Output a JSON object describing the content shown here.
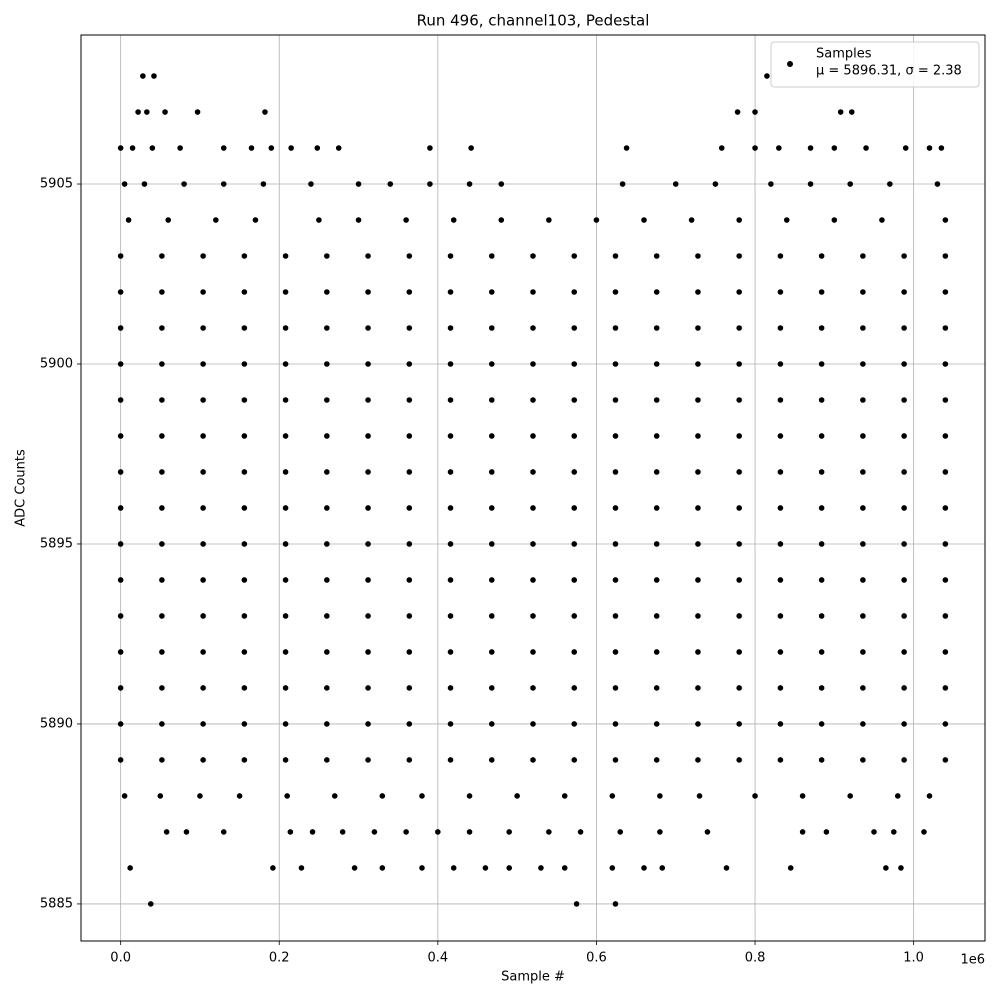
{
  "chart_data": {
    "type": "scatter",
    "title": "Run 496, channel103, Pedestal",
    "x_label": "Sample #",
    "y_label": "ADC Counts",
    "x_offset_label": "1e6",
    "xlim": [
      -50000,
      1090000
    ],
    "ylim": [
      5883.97,
      5909.14
    ],
    "xticks": [
      {
        "value": 0,
        "label": "0.0"
      },
      {
        "value": 200000,
        "label": "0.2"
      },
      {
        "value": 400000,
        "label": "0.4"
      },
      {
        "value": 600000,
        "label": "0.6"
      },
      {
        "value": 800000,
        "label": "0.8"
      },
      {
        "value": 1000000,
        "label": "1.0"
      }
    ],
    "yticks": [
      5885,
      5890,
      5895,
      5900,
      5905
    ],
    "grid": true,
    "legend_position": "upper right",
    "legend_note": "μ = 5896.31, σ = 2.38",
    "series": [
      {
        "name": "Samples",
        "color": "#000000",
        "x": [
          0,
          52000,
          104000,
          156000,
          208000,
          260000,
          312000,
          364000,
          416000,
          468000,
          520000,
          572000,
          624000,
          676000,
          728000,
          780000,
          832000,
          884000,
          936000,
          988000,
          1040000,
          0,
          52000,
          104000,
          156000,
          208000,
          260000,
          312000,
          364000,
          416000,
          468000,
          520000,
          572000,
          624000,
          676000,
          728000,
          780000,
          832000,
          884000,
          936000,
          988000,
          1040000,
          0,
          52000,
          104000,
          156000,
          208000,
          260000,
          312000,
          364000,
          416000,
          468000,
          520000,
          572000,
          624000,
          676000,
          728000,
          780000,
          832000,
          884000,
          936000,
          988000,
          1040000,
          0,
          52000,
          104000,
          156000,
          208000,
          260000,
          312000,
          364000,
          416000,
          468000,
          520000,
          572000,
          624000,
          676000,
          728000,
          780000,
          832000,
          884000,
          936000,
          988000,
          1040000,
          0,
          52000,
          104000,
          156000,
          208000,
          260000,
          312000,
          364000,
          416000,
          468000,
          520000,
          572000,
          624000,
          676000,
          728000,
          780000,
          832000,
          884000,
          936000,
          988000,
          1040000,
          0,
          52000,
          104000,
          156000,
          208000,
          260000,
          312000,
          364000,
          416000,
          468000,
          520000,
          572000,
          624000,
          676000,
          728000,
          780000,
          832000,
          884000,
          936000,
          988000,
          1040000,
          0,
          52000,
          104000,
          156000,
          208000,
          260000,
          312000,
          364000,
          416000,
          468000,
          520000,
          572000,
          624000,
          676000,
          728000,
          780000,
          832000,
          884000,
          936000,
          988000,
          1040000,
          0,
          52000,
          104000,
          156000,
          208000,
          260000,
          312000,
          364000,
          416000,
          468000,
          520000,
          572000,
          624000,
          676000,
          728000,
          780000,
          832000,
          884000,
          936000,
          988000,
          1040000,
          0,
          52000,
          104000,
          156000,
          208000,
          260000,
          312000,
          364000,
          416000,
          468000,
          520000,
          572000,
          624000,
          676000,
          728000,
          780000,
          832000,
          884000,
          936000,
          988000,
          1040000,
          0,
          52000,
          104000,
          156000,
          208000,
          260000,
          312000,
          364000,
          416000,
          468000,
          520000,
          572000,
          624000,
          676000,
          728000,
          780000,
          832000,
          884000,
          936000,
          988000,
          1040000,
          0,
          52000,
          104000,
          156000,
          208000,
          260000,
          312000,
          364000,
          416000,
          468000,
          520000,
          572000,
          624000,
          676000,
          728000,
          780000,
          832000,
          884000,
          936000,
          988000,
          1040000,
          0,
          52000,
          104000,
          156000,
          208000,
          260000,
          312000,
          364000,
          416000,
          468000,
          520000,
          572000,
          624000,
          676000,
          728000,
          780000,
          832000,
          884000,
          936000,
          988000,
          1040000,
          0,
          52000,
          104000,
          156000,
          208000,
          260000,
          312000,
          364000,
          416000,
          468000,
          520000,
          572000,
          624000,
          676000,
          728000,
          780000,
          832000,
          884000,
          936000,
          988000,
          1040000,
          0,
          52000,
          104000,
          156000,
          208000,
          260000,
          312000,
          364000,
          416000,
          468000,
          520000,
          572000,
          624000,
          676000,
          728000,
          780000,
          832000,
          884000,
          936000,
          988000,
          1040000,
          0,
          52000,
          104000,
          156000,
          208000,
          260000,
          312000,
          364000,
          416000,
          468000,
          520000,
          572000,
          624000,
          676000,
          728000,
          780000,
          832000,
          884000,
          936000,
          988000,
          1040000,
          10000,
          60000,
          120000,
          170000,
          250000,
          300000,
          360000,
          420000,
          480000,
          540000,
          600000,
          660000,
          720000,
          780000,
          840000,
          900000,
          960000,
          1040000,
          5000,
          50000,
          100000,
          150000,
          210000,
          270000,
          330000,
          380000,
          440000,
          500000,
          560000,
          620000,
          680000,
          730000,
          800000,
          860000,
          920000,
          980000,
          1020000,
          5000,
          30000,
          80000,
          130000,
          180000,
          240000,
          300000,
          340000,
          390000,
          440000,
          480000,
          633000,
          700000,
          750000,
          820000,
          870000,
          920000,
          970000,
          1030000,
          58000,
          83000,
          130000,
          214000,
          242000,
          280000,
          320000,
          360000,
          400000,
          440000,
          490000,
          540000,
          580000,
          630000,
          680000,
          740000,
          860000,
          890000,
          950000,
          975000,
          1013000,
          0,
          15000,
          40000,
          75000,
          130000,
          165000,
          190000,
          215000,
          248000,
          275000,
          390000,
          442000,
          638000,
          758000,
          800000,
          830000,
          870000,
          900000,
          940000,
          990000,
          1020000,
          1035000,
          22000,
          33000,
          56000,
          97000,
          182000,
          778000,
          800000,
          908000,
          922000,
          28000,
          42000,
          815000,
          12000,
          192000,
          228000,
          295000,
          330000,
          380000,
          420000,
          460000,
          490000,
          530000,
          560000,
          620000,
          660000,
          683000,
          764000,
          845000,
          965000,
          984000,
          38000,
          575000,
          624000
        ],
        "values": [
          5889,
          5889,
          5889,
          5889,
          5889,
          5889,
          5889,
          5889,
          5889,
          5889,
          5889,
          5889,
          5889,
          5889,
          5889,
          5889,
          5889,
          5889,
          5889,
          5889,
          5889,
          5890,
          5890,
          5890,
          5890,
          5890,
          5890,
          5890,
          5890,
          5890,
          5890,
          5890,
          5890,
          5890,
          5890,
          5890,
          5890,
          5890,
          5890,
          5890,
          5890,
          5890,
          5891,
          5891,
          5891,
          5891,
          5891,
          5891,
          5891,
          5891,
          5891,
          5891,
          5891,
          5891,
          5891,
          5891,
          5891,
          5891,
          5891,
          5891,
          5891,
          5891,
          5891,
          5892,
          5892,
          5892,
          5892,
          5892,
          5892,
          5892,
          5892,
          5892,
          5892,
          5892,
          5892,
          5892,
          5892,
          5892,
          5892,
          5892,
          5892,
          5892,
          5892,
          5892,
          5893,
          5893,
          5893,
          5893,
          5893,
          5893,
          5893,
          5893,
          5893,
          5893,
          5893,
          5893,
          5893,
          5893,
          5893,
          5893,
          5893,
          5893,
          5893,
          5893,
          5893,
          5894,
          5894,
          5894,
          5894,
          5894,
          5894,
          5894,
          5894,
          5894,
          5894,
          5894,
          5894,
          5894,
          5894,
          5894,
          5894,
          5894,
          5894,
          5894,
          5894,
          5894,
          5895,
          5895,
          5895,
          5895,
          5895,
          5895,
          5895,
          5895,
          5895,
          5895,
          5895,
          5895,
          5895,
          5895,
          5895,
          5895,
          5895,
          5895,
          5895,
          5895,
          5895,
          5896,
          5896,
          5896,
          5896,
          5896,
          5896,
          5896,
          5896,
          5896,
          5896,
          5896,
          5896,
          5896,
          5896,
          5896,
          5896,
          5896,
          5896,
          5896,
          5896,
          5896,
          5897,
          5897,
          5897,
          5897,
          5897,
          5897,
          5897,
          5897,
          5897,
          5897,
          5897,
          5897,
          5897,
          5897,
          5897,
          5897,
          5897,
          5897,
          5897,
          5897,
          5897,
          5898,
          5898,
          5898,
          5898,
          5898,
          5898,
          5898,
          5898,
          5898,
          5898,
          5898,
          5898,
          5898,
          5898,
          5898,
          5898,
          5898,
          5898,
          5898,
          5898,
          5898,
          5899,
          5899,
          5899,
          5899,
          5899,
          5899,
          5899,
          5899,
          5899,
          5899,
          5899,
          5899,
          5899,
          5899,
          5899,
          5899,
          5899,
          5899,
          5899,
          5899,
          5899,
          5900,
          5900,
          5900,
          5900,
          5900,
          5900,
          5900,
          5900,
          5900,
          5900,
          5900,
          5900,
          5900,
          5900,
          5900,
          5900,
          5900,
          5900,
          5900,
          5900,
          5900,
          5901,
          5901,
          5901,
          5901,
          5901,
          5901,
          5901,
          5901,
          5901,
          5901,
          5901,
          5901,
          5901,
          5901,
          5901,
          5901,
          5901,
          5901,
          5901,
          5901,
          5901,
          5902,
          5902,
          5902,
          5902,
          5902,
          5902,
          5902,
          5902,
          5902,
          5902,
          5902,
          5902,
          5902,
          5902,
          5902,
          5902,
          5902,
          5902,
          5902,
          5902,
          5902,
          5903,
          5903,
          5903,
          5903,
          5903,
          5903,
          5903,
          5903,
          5903,
          5903,
          5903,
          5903,
          5903,
          5903,
          5903,
          5903,
          5903,
          5903,
          5903,
          5903,
          5903,
          5904,
          5904,
          5904,
          5904,
          5904,
          5904,
          5904,
          5904,
          5904,
          5904,
          5904,
          5904,
          5904,
          5904,
          5904,
          5904,
          5904,
          5904,
          5888,
          5888,
          5888,
          5888,
          5888,
          5888,
          5888,
          5888,
          5888,
          5888,
          5888,
          5888,
          5888,
          5888,
          5888,
          5888,
          5888,
          5888,
          5888,
          5905,
          5905,
          5905,
          5905,
          5905,
          5905,
          5905,
          5905,
          5905,
          5905,
          5905,
          5905,
          5905,
          5905,
          5905,
          5905,
          5905,
          5905,
          5905,
          5887,
          5887,
          5887,
          5887,
          5887,
          5887,
          5887,
          5887,
          5887,
          5887,
          5887,
          5887,
          5887,
          5887,
          5887,
          5887,
          5887,
          5887,
          5887,
          5887,
          5887,
          5906,
          5906,
          5906,
          5906,
          5906,
          5906,
          5906,
          5906,
          5906,
          5906,
          5906,
          5906,
          5906,
          5906,
          5906,
          5906,
          5906,
          5906,
          5906,
          5906,
          5906,
          5906,
          5907,
          5907,
          5907,
          5907,
          5907,
          5907,
          5907,
          5907,
          5907,
          5908,
          5908,
          5908,
          5886,
          5886,
          5886,
          5886,
          5886,
          5886,
          5886,
          5886,
          5886,
          5886,
          5886,
          5886,
          5886,
          5886,
          5886,
          5886,
          5886,
          5886,
          5885,
          5885,
          5885
        ]
      }
    ]
  }
}
